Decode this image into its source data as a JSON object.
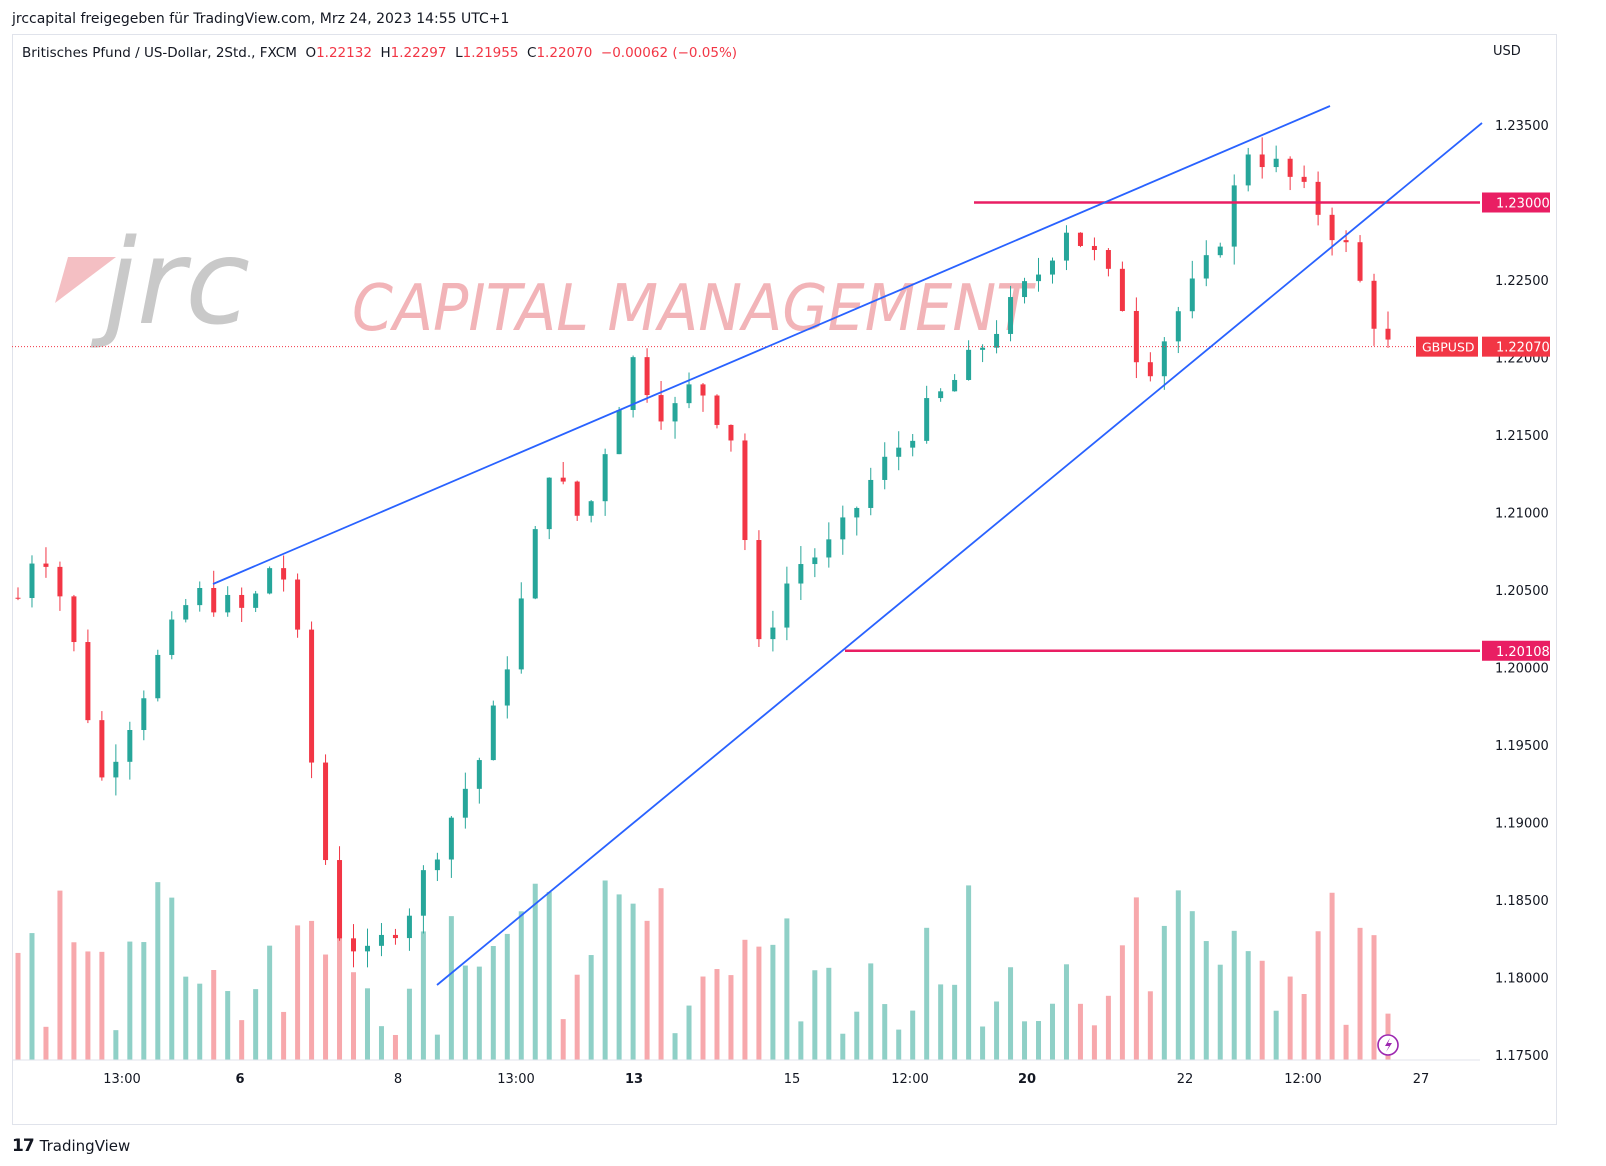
{
  "header": {
    "caption": "jrccapital freigegeben für TradingView.com, Mrz 24, 2023 14:55 UTC+1"
  },
  "legend": {
    "symbol": "Britisches Pfund / US-Dollar, 2Std., FXCM",
    "open_label": "O",
    "open": "1.22132",
    "high_label": "H",
    "high": "1.22297",
    "low_label": "L",
    "low": "1.21955",
    "close_label": "C",
    "close": "1.22070",
    "change": "−0.00062 (−0.05%)"
  },
  "watermark": {
    "logo_text": "jrc",
    "tagline": "CAPITAL MANAGEMENT"
  },
  "footer": {
    "brand": "TradingView"
  },
  "colors": {
    "up": "#26a69a",
    "down": "#f23645",
    "vol_up": "#8fd0c7",
    "vol_down": "#f7a8ac",
    "trendline": "#2962ff",
    "level": "#e91e63"
  },
  "chart_data": {
    "type": "candlestick",
    "currency_label": "USD",
    "y_ticks": [
      "1.23500",
      "1.23000",
      "1.22500",
      "1.22000",
      "1.21500",
      "1.21000",
      "1.20500",
      "1.20000",
      "1.19500",
      "1.19000",
      "1.18500",
      "1.18000",
      "1.17500"
    ],
    "x_ticks": [
      {
        "label": "13:00",
        "bold": false
      },
      {
        "label": "6",
        "bold": true
      },
      {
        "label": "8",
        "bold": false
      },
      {
        "label": "13:00",
        "bold": false
      },
      {
        "label": "13",
        "bold": true
      },
      {
        "label": "15",
        "bold": false
      },
      {
        "label": "12:00",
        "bold": false
      },
      {
        "label": "20",
        "bold": true
      },
      {
        "label": "22",
        "bold": false
      },
      {
        "label": "12:00",
        "bold": false
      },
      {
        "label": "27",
        "bold": false
      }
    ],
    "price_labels": [
      {
        "text": "1.23000",
        "price": 1.23,
        "kind": "level"
      },
      {
        "text": "1.20108",
        "price": 1.20108,
        "kind": "level"
      },
      {
        "text": "1.22070",
        "price": 1.2207,
        "kind": "last",
        "tag": "GBPUSD"
      }
    ],
    "horizontal_levels": [
      1.23,
      1.20108
    ],
    "last_price": 1.2207,
    "key_prices": {
      "start": 1.2045,
      "early_high": 1.2085,
      "low_1": 1.1928,
      "swing_high_1": 1.2065,
      "major_low": 1.1812,
      "high_2": 1.2198,
      "low_3": 1.2011,
      "high_4": 1.2285,
      "low_5": 1.2188,
      "high_6": 1.2335,
      "last": 1.2207
    }
  }
}
